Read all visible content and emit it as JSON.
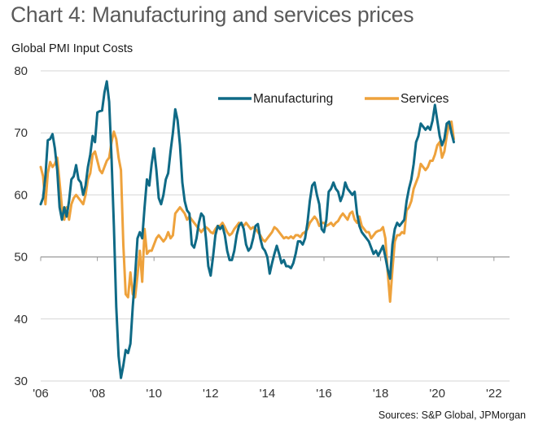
{
  "header": {
    "title": "Chart 4: Manufacturing and services prices",
    "subtitle": "Global PMI Input Costs"
  },
  "footer": {
    "source": "Sources: S&P Global, JPMorgan"
  },
  "chart_data": {
    "type": "line",
    "title": "Chart 4: Manufacturing and services prices",
    "subtitle": "Global PMI Input Costs",
    "xlabel": "",
    "ylabel": "Global PMI Input Costs",
    "ylim": [
      30,
      80
    ],
    "yticks": [
      30,
      40,
      50,
      60,
      70,
      80
    ],
    "ytick_labels": [
      "30",
      "40",
      "50",
      "60",
      "70",
      "80"
    ],
    "xlim": [
      "2006-01",
      "2022-07"
    ],
    "xticks": [
      "'06",
      "'08",
      "'10",
      "'12",
      "'14",
      "'16",
      "'18",
      "'20",
      "'22"
    ],
    "xtick_years": [
      2006,
      2008,
      2010,
      2012,
      2014,
      2016,
      2018,
      2020,
      2022
    ],
    "x_axis_crosses_at": 50,
    "grid": true,
    "legend_position": "top-center",
    "frequency": "monthly",
    "start": "2006-01",
    "colors": {
      "Manufacturing": "#0f6a86",
      "Services": "#eea23c",
      "grid": "#d6d6d6",
      "axis": "#9a9a9a"
    },
    "series": [
      {
        "name": "Manufacturing",
        "values": [
          58.5,
          59.5,
          63.0,
          68.8,
          69.0,
          69.8,
          67.5,
          64.0,
          58.0,
          56.0,
          58.0,
          56.5,
          59.0,
          62.5,
          63.0,
          64.8,
          62.5,
          62.0,
          60.0,
          61.5,
          64.5,
          66.5,
          69.5,
          68.5,
          73.3,
          73.5,
          73.6,
          76.5,
          78.3,
          75.0,
          66.0,
          55.0,
          42.0,
          34.0,
          30.5,
          32.5,
          35.0,
          34.5,
          36.0,
          42.0,
          47.0,
          53.0,
          54.0,
          53.0,
          58.0,
          62.5,
          61.5,
          65.0,
          67.5,
          64.0,
          59.5,
          58.5,
          60.0,
          62.5,
          63.5,
          67.0,
          70.0,
          73.8,
          72.0,
          68.0,
          62.0,
          59.0,
          57.5,
          57.0,
          52.0,
          51.5,
          53.0,
          55.5,
          57.0,
          56.5,
          53.0,
          48.5,
          47.0,
          50.0,
          53.5,
          55.0,
          54.5,
          55.0,
          53.5,
          51.0,
          49.5,
          49.5,
          51.0,
          53.5,
          55.0,
          55.5,
          54.5,
          52.0,
          51.0,
          51.5,
          53.0,
          55.0,
          55.3,
          53.0,
          51.5,
          51.0,
          50.0,
          47.3,
          49.0,
          50.5,
          51.8,
          50.5,
          49.0,
          49.5,
          48.5,
          48.5,
          48.2,
          49.0,
          50.5,
          52.5,
          52.5,
          52.0,
          53.0,
          55.5,
          59.0,
          61.5,
          62.0,
          60.0,
          58.5,
          54.5,
          54.0,
          56.0,
          60.5,
          61.0,
          62.0,
          61.0,
          60.5,
          59.0,
          60.0,
          62.0,
          61.0,
          60.5,
          60.0,
          60.5,
          57.0,
          55.0,
          54.0,
          53.5,
          53.0,
          52.5,
          51.5,
          50.5,
          51.0,
          50.2,
          51.0,
          51.8,
          50.0,
          48.0,
          46.5,
          52.0,
          54.5,
          55.5,
          55.0,
          55.5,
          56.0,
          59.0,
          61.0,
          62.5,
          65.0,
          68.5,
          69.5,
          71.5,
          71.0,
          70.5,
          71.0,
          70.5,
          72.0,
          74.5,
          72.0,
          69.5,
          68.0,
          69.0,
          71.5,
          71.8,
          70.0,
          68.5
        ]
      },
      {
        "name": "Services",
        "values": [
          64.5,
          63.0,
          58.5,
          63.5,
          65.3,
          64.5,
          65.0,
          66.0,
          62.0,
          58.0,
          56.0,
          58.0,
          56.0,
          58.5,
          59.5,
          60.0,
          59.5,
          59.0,
          58.5,
          60.0,
          62.5,
          63.5,
          66.5,
          67.0,
          65.5,
          64.0,
          63.5,
          64.5,
          65.5,
          66.0,
          68.5,
          70.2,
          69.0,
          66.0,
          64.0,
          52.0,
          44.0,
          43.5,
          47.5,
          44.0,
          43.5,
          47.0,
          51.0,
          46.0,
          54.5,
          50.5,
          51.0,
          51.0,
          52.0,
          53.0,
          53.5,
          53.0,
          52.5,
          53.0,
          54.0,
          53.0,
          53.5,
          57.0,
          57.5,
          58.0,
          57.5,
          57.0,
          56.0,
          56.5,
          56.0,
          55.5,
          55.0,
          54.5,
          54.0,
          54.5,
          54.8,
          54.5,
          54.0,
          53.8,
          54.5,
          55.0,
          55.0,
          55.5,
          54.8,
          54.0,
          53.5,
          53.8,
          54.5,
          55.0,
          55.5,
          55.3,
          55.0,
          55.5,
          55.0,
          54.5,
          54.8,
          54.5,
          54.0,
          53.5,
          52.8,
          52.5,
          53.0,
          53.5,
          54.0,
          54.8,
          54.5,
          54.0,
          53.5,
          53.0,
          53.2,
          53.0,
          53.3,
          53.0,
          53.5,
          53.5,
          53.2,
          53.8,
          54.0,
          54.5,
          55.5,
          56.0,
          56.5,
          56.0,
          55.0,
          55.5,
          55.5,
          55.0,
          55.2,
          55.5,
          55.0,
          55.5,
          55.8,
          56.5,
          57.0,
          56.5,
          56.0,
          57.0,
          57.3,
          56.0,
          55.5,
          56.5,
          55.0,
          54.5,
          54.0,
          54.0,
          53.0,
          53.5,
          54.0,
          54.2,
          54.3,
          54.8,
          53.0,
          47.5,
          42.8,
          48.0,
          52.5,
          53.5,
          53.5,
          54.0,
          53.8,
          57.5,
          58.0,
          59.0,
          61.0,
          62.0,
          63.0,
          65.0,
          64.5,
          64.0,
          64.5,
          65.5,
          65.5,
          66.5,
          68.0,
          68.5,
          66.0,
          67.0,
          69.5,
          71.5,
          71.8,
          69.0
        ]
      }
    ]
  }
}
